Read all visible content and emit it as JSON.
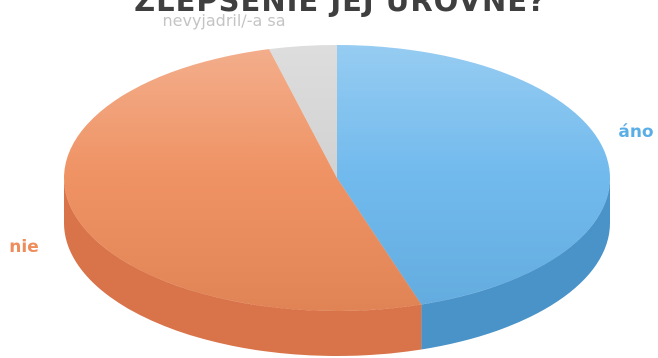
{
  "chart_data": {
    "type": "pie",
    "style": "3d",
    "title": "ZLEPŠENIE JEJ ÚROVNE?",
    "categories": [
      "áno",
      "nie",
      "nevyjadril/-a sa"
    ],
    "values": [
      45,
      51,
      4
    ],
    "colors": [
      "#69b6ec",
      "#ee8c5b",
      "#cfcfcf"
    ],
    "side_colors": [
      "#4a93c9",
      "#d9734a",
      "#a8a8a8"
    ],
    "label_colors": [
      "#5aaee6",
      "#ee8c5b",
      "#c4c4c4"
    ],
    "legend": "none"
  }
}
